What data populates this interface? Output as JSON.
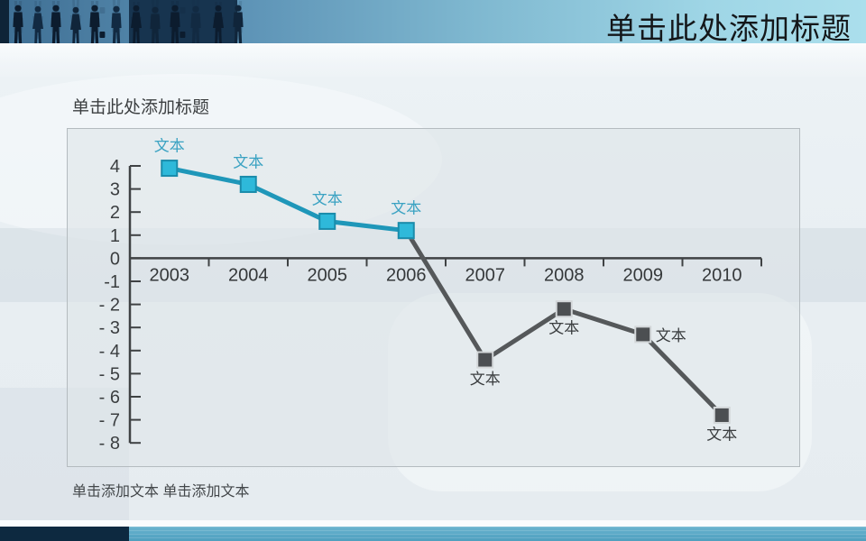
{
  "header": {
    "title": "单击此处添加标题"
  },
  "content": {
    "subtitle": "单击此处添加标题",
    "caption": "单击添加文本 单击添加文本"
  },
  "colors": {
    "header_gradient_left": "#3f6f94",
    "header_gradient_right": "#abdfec",
    "header_dark_panel": "#17344f",
    "title_text": "#14171a",
    "teal_line": "#1f97b9",
    "teal_marker": "#2eb9da",
    "gray_line": "#55585a",
    "gray_marker": "#4c4f52",
    "footer_navy": "#0d2940",
    "footer_teal": "#58a7c5"
  },
  "chart_data": {
    "type": "line",
    "title": "",
    "xlabel": "",
    "ylabel": "",
    "categories": [
      "2003",
      "2004",
      "2005",
      "2006",
      "2007",
      "2008",
      "2009",
      "2010"
    ],
    "series": [
      {
        "name": "teal-series",
        "line_color": "#1f97b9",
        "marker_fill": "#2eb9da",
        "marker_stroke": "#1a8cab",
        "label_color": "#3aa2c2",
        "values": [
          3.9,
          3.2,
          1.6,
          1.2,
          null,
          null,
          null,
          null
        ],
        "point_labels": [
          "文本",
          "文本",
          "文本",
          "文本",
          null,
          null,
          null,
          null
        ],
        "label_positions": [
          "above",
          "above",
          "above",
          "above",
          null,
          null,
          null,
          null
        ]
      },
      {
        "name": "gray-series",
        "line_color": "#55585a",
        "marker_fill": "#4c4f52",
        "marker_stroke": "#d3d7d9",
        "label_color": "#3a3d3f",
        "values": [
          null,
          null,
          null,
          1.2,
          -4.4,
          -2.2,
          -3.3,
          -6.8
        ],
        "point_labels": [
          null,
          null,
          null,
          null,
          "文本",
          "文本",
          "文本",
          "文本"
        ],
        "label_positions": [
          null,
          null,
          null,
          null,
          "below",
          "below",
          "right",
          "below"
        ]
      }
    ],
    "ylim": [
      -8,
      4
    ],
    "y_tick_step": 1,
    "y_tick_labels": [
      "4",
      "3",
      "2",
      "1",
      "0",
      "-1",
      "- 2",
      "- 3",
      "- 4",
      "- 5",
      "- 6",
      "- 7",
      "- 8"
    ],
    "grid": false,
    "legend": false
  }
}
